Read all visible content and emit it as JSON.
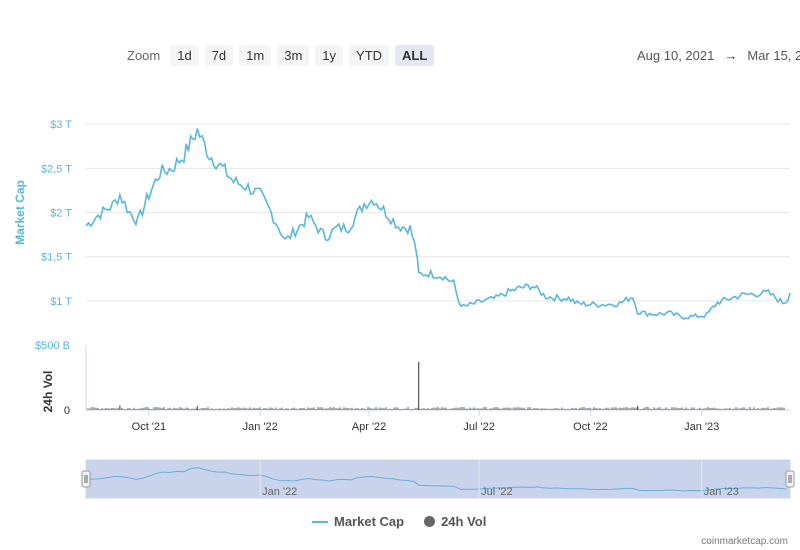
{
  "zoom": {
    "label": "Zoom",
    "buttons": [
      "1d",
      "7d",
      "1m",
      "3m",
      "1y",
      "YTD",
      "ALL"
    ],
    "active": "ALL"
  },
  "range": {
    "from": "Aug 10, 2021",
    "arrow": "→",
    "to": "Mar 15, 2"
  },
  "legend": {
    "market_cap": "Market Cap",
    "volume": "24h Vol"
  },
  "credit": "coinmarketcap.com",
  "colors": {
    "market_cap": "#5bb6db",
    "volume": "#555555",
    "navigator_fill": "#c9d3ec"
  },
  "chart_data": {
    "type": "line",
    "title": "",
    "x_ticks": [
      "Oct '21",
      "Jan '22",
      "Apr '22",
      "Jul '22",
      "Oct '22",
      "Jan '23"
    ],
    "x_tick_dates": [
      "2021-10-01",
      "2022-01-01",
      "2022-04-01",
      "2022-07-01",
      "2022-10-01",
      "2023-01-01"
    ],
    "xlim": [
      "2021-08-10",
      "2023-03-15"
    ],
    "market_cap": {
      "ylabel": "Market Cap",
      "ytick_labels": [
        "$1 T",
        "$1,5 T",
        "$2 T",
        "$2,5 T",
        "$3 T"
      ],
      "ytick_values": [
        1.0,
        1.5,
        2.0,
        2.5,
        3.0
      ],
      "unit": "trillion USD",
      "x": [
        "2021-08-10",
        "2021-08-20",
        "2021-09-01",
        "2021-09-07",
        "2021-09-15",
        "2021-09-22",
        "2021-10-01",
        "2021-10-10",
        "2021-10-20",
        "2021-10-30",
        "2021-11-10",
        "2021-11-20",
        "2021-12-01",
        "2021-12-10",
        "2021-12-20",
        "2022-01-01",
        "2022-01-10",
        "2022-01-22",
        "2022-02-01",
        "2022-02-10",
        "2022-02-24",
        "2022-03-05",
        "2022-03-15",
        "2022-03-28",
        "2022-04-05",
        "2022-04-15",
        "2022-04-25",
        "2022-05-05",
        "2022-05-10",
        "2022-05-12",
        "2022-05-20",
        "2022-06-01",
        "2022-06-10",
        "2022-06-14",
        "2022-06-18",
        "2022-06-25",
        "2022-07-05",
        "2022-07-15",
        "2022-07-25",
        "2022-08-05",
        "2022-08-14",
        "2022-08-25",
        "2022-09-05",
        "2022-09-13",
        "2022-09-20",
        "2022-10-01",
        "2022-10-15",
        "2022-10-25",
        "2022-11-05",
        "2022-11-09",
        "2022-11-15",
        "2022-11-25",
        "2022-12-05",
        "2022-12-15",
        "2022-12-25",
        "2023-01-05",
        "2023-01-14",
        "2023-01-25",
        "2023-02-05",
        "2023-02-15",
        "2023-02-25",
        "2023-03-09",
        "2023-03-12",
        "2023-03-15"
      ],
      "y": [
        1.85,
        1.97,
        2.08,
        2.2,
        2.0,
        1.9,
        2.2,
        2.45,
        2.5,
        2.65,
        2.93,
        2.65,
        2.5,
        2.35,
        2.3,
        2.2,
        2.0,
        1.68,
        1.82,
        1.95,
        1.72,
        1.82,
        1.83,
        2.1,
        2.15,
        2.0,
        1.85,
        1.82,
        1.57,
        1.3,
        1.31,
        1.28,
        1.2,
        1.0,
        0.93,
        0.96,
        1.0,
        1.03,
        1.1,
        1.15,
        1.17,
        1.05,
        1.03,
        1.03,
        0.97,
        0.96,
        0.96,
        0.97,
        1.05,
        0.88,
        0.86,
        0.85,
        0.86,
        0.82,
        0.82,
        0.84,
        0.98,
        1.03,
        1.07,
        1.08,
        1.09,
        0.98,
        1.0,
        1.09
      ]
    },
    "volume": {
      "ylabel": "24h Vol",
      "ytick_labels": [
        "0",
        "$500 B"
      ],
      "ytick_values": [
        0,
        500
      ],
      "unit": "billion USD",
      "spikes": [
        {
          "date": "2022-05-12",
          "value": 370
        },
        {
          "date": "2021-09-07",
          "value": 35
        },
        {
          "date": "2021-11-10",
          "value": 30
        },
        {
          "date": "2022-11-09",
          "value": 30
        }
      ],
      "baseline_value": 18
    }
  }
}
